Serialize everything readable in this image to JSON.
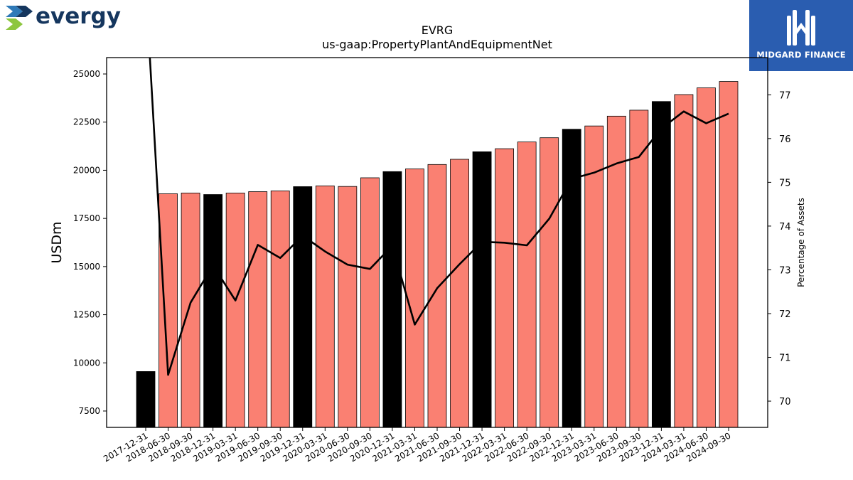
{
  "logos": {
    "left_text": "evergy",
    "right_text": "MIDGARD FINANCE",
    "left_icon": "evergy-chevrons-icon",
    "right_icon": "midgard-m-icon"
  },
  "chart_data": {
    "type": "bar",
    "title": "EVRG",
    "subtitle": "us-gaap:PropertyPlantAndEquipmentNet",
    "ylabel": "USDm",
    "y2label": "Percentage of Assets",
    "ylim": [
      6650,
      25850
    ],
    "y2lim": [
      69.4,
      77.85
    ],
    "yticks": [
      7500,
      10000,
      12500,
      15000,
      17500,
      20000,
      22500,
      25000
    ],
    "y2ticks": [
      70,
      71,
      72,
      73,
      74,
      75,
      76,
      77
    ],
    "categories": [
      "2017-12-31",
      "2018-06-30",
      "2018-09-30",
      "2018-12-31",
      "2019-03-31",
      "2019-06-30",
      "2019-09-30",
      "2019-12-31",
      "2020-03-31",
      "2020-06-30",
      "2020-09-30",
      "2020-12-31",
      "2021-03-31",
      "2021-06-30",
      "2021-09-30",
      "2021-12-31",
      "2022-03-31",
      "2022-06-30",
      "2022-09-30",
      "2022-12-31",
      "2023-03-31",
      "2023-06-30",
      "2023-09-30",
      "2023-12-31",
      "2024-03-31",
      "2024-06-30",
      "2024-09-30"
    ],
    "series": [
      {
        "type": "bar",
        "values": [
          9550,
          18780,
          18820,
          18740,
          18820,
          18890,
          18930,
          19150,
          19190,
          19160,
          19610,
          19930,
          20070,
          20300,
          20570,
          20960,
          21120,
          21470,
          21690,
          22130,
          22300,
          22810,
          23120,
          23570,
          23930,
          24280,
          24610
        ]
      },
      {
        "type": "line",
        "axis": "right",
        "values": [
          79.5,
          70.6,
          72.25,
          73.1,
          72.3,
          73.57,
          73.27,
          73.78,
          73.42,
          73.12,
          73.02,
          73.55,
          71.75,
          72.58,
          73.13,
          73.64,
          73.62,
          73.56,
          74.17,
          75.08,
          75.22,
          75.43,
          75.58,
          76.23,
          76.62,
          76.35,
          76.57
        ]
      }
    ],
    "colors": {
      "bar_quarter": "#fa8072",
      "bar_year_end": "#000000",
      "line": "#000000"
    }
  }
}
